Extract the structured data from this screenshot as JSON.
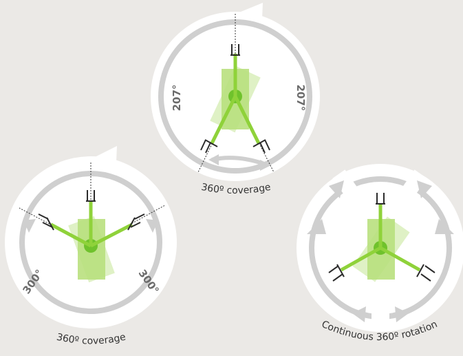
{
  "colors": {
    "background": "#ebe9e6",
    "disc": "#ffffff",
    "track": "#cfcfcf",
    "arm": "#8fd23a",
    "body": "#b9e07e",
    "hub": "#6fc22c",
    "dark": "#2b2b2b"
  },
  "diagrams": {
    "top": {
      "angle_left": "207°",
      "angle_right": "207°",
      "caption": "360º coverage"
    },
    "left": {
      "angle_left": "300°",
      "angle_right": "300°",
      "caption": "360º coverage"
    },
    "right": {
      "caption": "Continuous 360º rotation"
    }
  }
}
